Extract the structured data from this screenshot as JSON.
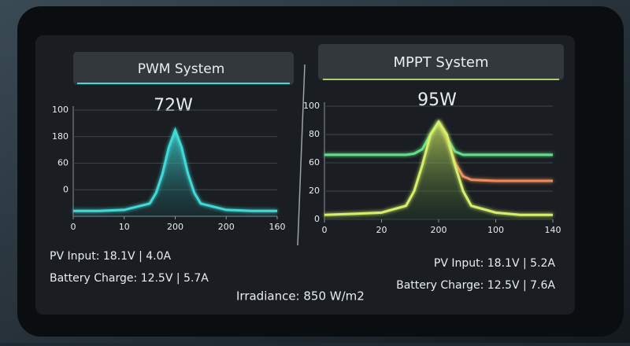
{
  "chart_data": [
    {
      "type": "line",
      "title": "PWM System",
      "annotation": "72W",
      "x": [
        0,
        20,
        40,
        60,
        65,
        70,
        75,
        80,
        85,
        90,
        95,
        100,
        120,
        140,
        160
      ],
      "series": [
        {
          "color": "#3fd9d6",
          "values": [
            5,
            5,
            6,
            12,
            22,
            40,
            65,
            81,
            65,
            40,
            22,
            12,
            6,
            5,
            5
          ]
        }
      ],
      "xlim": [
        0,
        160
      ],
      "xticks": [
        0,
        {
          "value": 40,
          "label": "10"
        },
        {
          "value": 80,
          "label": "200"
        },
        {
          "value": 120,
          "label": "200"
        },
        {
          "value": 160,
          "label": "160"
        }
      ],
      "ylim": [
        0,
        100
      ],
      "yticks": [
        {
          "value": 25,
          "label": "0"
        },
        {
          "value": 50,
          "label": "60"
        },
        {
          "value": 75,
          "label": "180"
        },
        100
      ],
      "grid": true,
      "notes": [
        "PV Input: 18.1V | 4.0A",
        "Battery Charge: 12.5V | 5.7A"
      ]
    },
    {
      "type": "line",
      "title": "MPPT System",
      "annotation": "95W",
      "x": [
        0,
        20,
        35,
        50,
        55,
        60,
        65,
        70,
        75,
        80,
        85,
        90,
        105,
        120,
        140
      ],
      "series": [
        {
          "color": "#5fe08a",
          "values": [
            57,
            57,
            57,
            57,
            58,
            62,
            75,
            86,
            72,
            60,
            57,
            57,
            57,
            57,
            57
          ]
        },
        {
          "color": "#f08a5a",
          "values": [
            null,
            null,
            null,
            null,
            null,
            null,
            null,
            86,
            70,
            50,
            38,
            35,
            34,
            34,
            34
          ]
        },
        {
          "color": "#d6ef6a",
          "values": [
            4,
            5,
            6,
            12,
            25,
            48,
            75,
            86,
            75,
            48,
            25,
            12,
            6,
            4,
            4
          ]
        }
      ],
      "xlim": [
        0,
        140
      ],
      "xticks": [
        0,
        {
          "value": 35,
          "label": "20"
        },
        {
          "value": 70,
          "label": "200"
        },
        {
          "value": 105,
          "label": "100"
        },
        140
      ],
      "ylim": [
        0,
        100
      ],
      "yticks": [
        0,
        {
          "value": 25,
          "label": "20"
        },
        {
          "value": 50,
          "label": "60"
        },
        {
          "value": 75,
          "label": "80"
        },
        100
      ],
      "grid": true,
      "notes": [
        "PV Input: 18.1V | 5.2A",
        "Battery Charge: 12.5V | 7.6A"
      ]
    }
  ],
  "footer": "Irradiance: 850 W/m2"
}
